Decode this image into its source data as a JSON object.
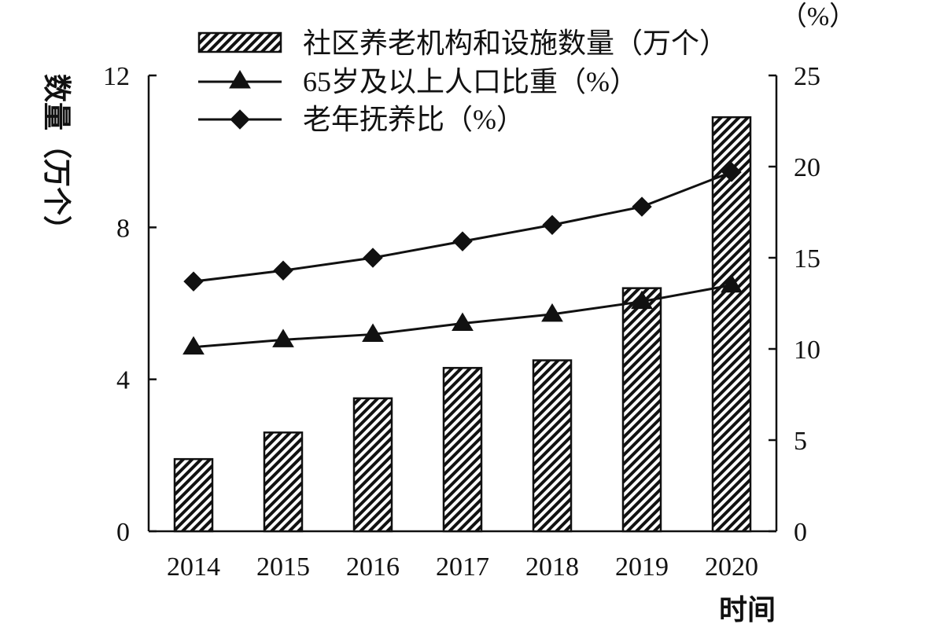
{
  "chart_data": {
    "type": "bar",
    "categories": [
      "2014",
      "2015",
      "2016",
      "2017",
      "2018",
      "2019",
      "2020"
    ],
    "bar_series": {
      "name": "社区养老机构和设施数量（万个）",
      "values": [
        1.9,
        2.6,
        3.5,
        4.3,
        4.5,
        6.4,
        10.9
      ]
    },
    "line_series": [
      {
        "name": "65岁及以上人口比重（%）",
        "marker": "triangle",
        "values": [
          10.1,
          10.5,
          10.8,
          11.4,
          11.9,
          12.6,
          13.5
        ]
      },
      {
        "name": "老年抚养比（%）",
        "marker": "diamond",
        "values": [
          13.7,
          14.3,
          15.0,
          15.9,
          16.8,
          17.8,
          19.7
        ]
      }
    ],
    "y_left": {
      "label": "数量（万个）",
      "ylim": [
        0,
        12
      ],
      "ticks": [
        "0",
        "4",
        "8",
        "12"
      ]
    },
    "y_right": {
      "label": "（%）",
      "ylim": [
        0,
        25
      ],
      "ticks": [
        "0",
        "5",
        "10",
        "15",
        "20",
        "25"
      ]
    },
    "xlabel": "时间",
    "legend_position": "top",
    "grid": false,
    "colors": {
      "ink": "#111111",
      "background": "#ffffff"
    }
  }
}
